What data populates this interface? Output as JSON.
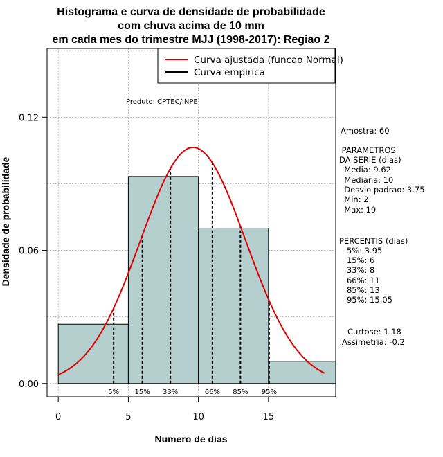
{
  "title_lines": [
    "Histograma e curva de densidade de probabilidade",
    "com chuva acima de 10 mm",
    "em cada mes do trimestre MJJ (1998-2017): Regiao 2"
  ],
  "produto": "Produto: CPTEC/INPE",
  "legend": {
    "fitted_label": "Curva ajustada (funcao Normal)",
    "empirical_label": "Curva empirica"
  },
  "side_stats": {
    "amostra": "Amostra: 60",
    "params_lines": [
      " PARAMETROS",
      "DA SERIE (dias)",
      "  Media: 9.62",
      "  Mediana: 10",
      "  Desvio padrao: 3.75",
      "  Min: 2",
      "  Max: 19"
    ],
    "percentis_lines": [
      "PERCENTIS (dias)",
      "   5%: 3.95",
      "   15%: 6",
      "   33%: 8",
      "   66%: 11",
      "   85%: 13",
      "   95%: 15.05"
    ],
    "curtose": "Curtose: 1.18",
    "assimetria": "Assimetria: -0.2"
  },
  "colors": {
    "bar_fill": "#b5cece",
    "fitted_curve": "#dd0000",
    "grid": "#bbbbbb",
    "axis": "#000000"
  },
  "chart_data": {
    "type": "bar",
    "title": "Histograma e curva de densidade de probabilidade com chuva acima de 10 mm em cada mes do trimestre MJJ (1998-2017): Regiao 2",
    "xlabel": "Numero de dias",
    "ylabel": "Densidade de probabilidade",
    "xlim": [
      -0.8,
      19.8
    ],
    "ylim": [
      -0.006,
      0.151
    ],
    "x_ticks": [
      0,
      5,
      10,
      15
    ],
    "y_ticks": [
      0.0,
      0.06,
      0.12
    ],
    "y_tick_labels": [
      "0.00",
      "0.06",
      "0.12"
    ],
    "grid": true,
    "legend_position": "top-right",
    "bins": [
      {
        "start": 0,
        "end": 5,
        "density": 0.0267
      },
      {
        "start": 5,
        "end": 10,
        "density": 0.0933
      },
      {
        "start": 10,
        "end": 15,
        "density": 0.07
      },
      {
        "start": 15,
        "end": 20,
        "density": 0.01
      }
    ],
    "fitted_normal": {
      "mean": 9.62,
      "sd": 3.75,
      "x_range": [
        0,
        19
      ]
    },
    "percentiles": [
      {
        "label": "5%",
        "value": 3.95
      },
      {
        "label": "15%",
        "value": 6
      },
      {
        "label": "33%",
        "value": 8
      },
      {
        "label": "66%",
        "value": 11
      },
      {
        "label": "85%",
        "value": 13
      },
      {
        "label": "95%",
        "value": 15.05
      }
    ]
  }
}
